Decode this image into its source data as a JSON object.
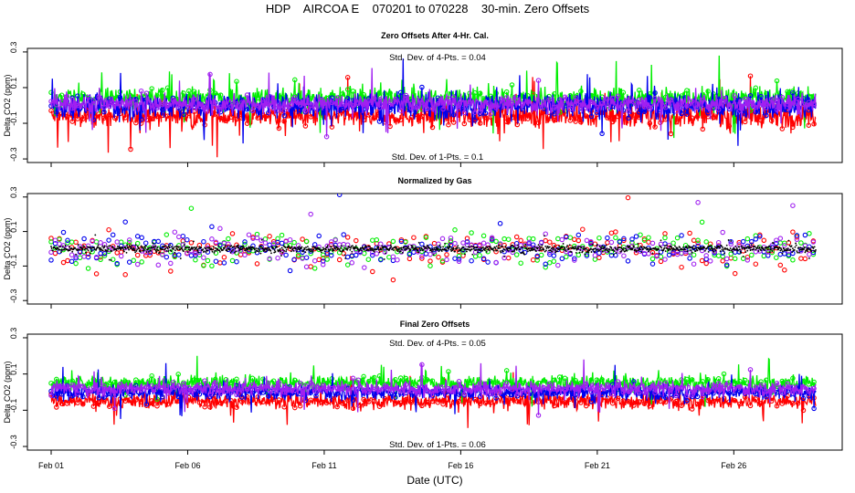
{
  "title": "HDP    AIRCOA E    070201 to 070228    30-min. Zero Offsets",
  "colors": {
    "red": "#ff0000",
    "green": "#00ee00",
    "blue": "#0000ee",
    "purple": "#a020f0",
    "black": "#000000"
  },
  "chart_data": [
    {
      "type": "scatter",
      "title": "Zero Offsets After 4-Hr. Cal.",
      "ylabel": "Delta CO2 (ppm)",
      "xlabel": "",
      "xlim": [
        0,
        28
      ],
      "ylim": [
        -0.32,
        0.32
      ],
      "yticks": [
        -0.3,
        -0.1,
        0.1,
        0.3
      ],
      "ytick_labels": [
        "-0.3",
        "-0.1",
        "0.1",
        "0.3"
      ],
      "annotation_top": "Std. Dev. of 4-Pts. = 0.04",
      "annotation_bottom": "Std. Dev. of 1-Pts. = 0.1",
      "series": [
        {
          "name": "red",
          "mean": -0.06,
          "spread": 0.06
        },
        {
          "name": "green",
          "mean": 0.04,
          "spread": 0.06
        },
        {
          "name": "blue",
          "mean": 0.0,
          "spread": 0.07
        },
        {
          "name": "purple",
          "mean": 0.01,
          "spread": 0.05
        }
      ]
    },
    {
      "type": "scatter",
      "title": "Normalized by Gas",
      "ylabel": "Delta CO2 (ppm)",
      "xlabel": "",
      "xlim": [
        0,
        28
      ],
      "ylim": [
        -0.32,
        0.32
      ],
      "yticks": [
        -0.3,
        -0.1,
        0.1,
        0.3
      ],
      "ytick_labels": [
        "-0.3",
        "-0.1",
        "0.1",
        "0.3"
      ],
      "series": [
        {
          "name": "red",
          "mean": 0.0,
          "spread": 0.09
        },
        {
          "name": "green",
          "mean": 0.0,
          "spread": 0.09
        },
        {
          "name": "blue",
          "mean": 0.0,
          "spread": 0.09
        },
        {
          "name": "purple",
          "mean": 0.0,
          "spread": 0.08
        },
        {
          "name": "black",
          "mean": 0.0,
          "spread": 0.02
        }
      ]
    },
    {
      "type": "scatter",
      "title": "Final Zero Offsets",
      "ylabel": "Delta CO2 (ppm)",
      "xlabel": "Date (UTC)",
      "xlim": [
        0,
        28
      ],
      "ylim": [
        -0.32,
        0.32
      ],
      "yticks": [
        -0.3,
        -0.1,
        0.1,
        0.3
      ],
      "ytick_labels": [
        "-0.3",
        "-0.1",
        "0.1",
        "0.3"
      ],
      "xticks": [
        0,
        5,
        10,
        15,
        20,
        25
      ],
      "xtick_labels": [
        "Feb 01",
        "Feb 06",
        "Feb 11",
        "Feb 16",
        "Feb 21",
        "Feb 26"
      ],
      "annotation_top": "Std. Dev. of 4-Pts. = 0.05",
      "annotation_bottom": "Std. Dev. of 1-Pts. = 0.06",
      "series": [
        {
          "name": "red",
          "mean": -0.05,
          "spread": 0.04
        },
        {
          "name": "green",
          "mean": 0.05,
          "spread": 0.04
        },
        {
          "name": "blue",
          "mean": 0.0,
          "spread": 0.04
        },
        {
          "name": "purple",
          "mean": 0.02,
          "spread": 0.04
        }
      ]
    }
  ]
}
